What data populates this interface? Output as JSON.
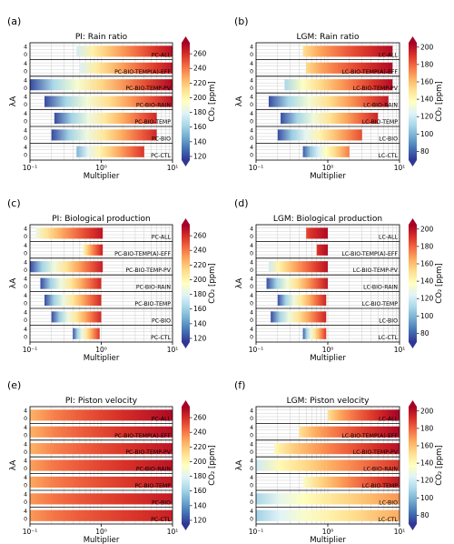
{
  "chart_data": [
    {
      "panel_label": "(a)",
      "title": "PI: Rain ratio",
      "type": "heatmap",
      "xlabel": "Multiplier",
      "ylabel": "λA",
      "x_axis": {
        "scale": "log",
        "range": [
          0.1,
          10
        ],
        "tick_labels": [
          "10⁻¹",
          "10⁰",
          "10¹"
        ]
      },
      "y_tick_labels": [
        "4",
        "0"
      ],
      "colorbar": {
        "label": "CO₂ [ppm]",
        "range": [
          115,
          275
        ],
        "ticks": [
          120,
          140,
          160,
          180,
          200,
          220,
          240,
          260
        ],
        "colormap": "RdYlBu_r"
      },
      "grid": true,
      "rows": [
        {
          "label": "PC-ALL",
          "x_start": 0.45,
          "x_end": 10,
          "c_start": 175,
          "c_end": 270
        },
        {
          "label": "PC-BIO-TEMP(A)-EFF",
          "x_start": 0.5,
          "x_end": 10,
          "c_start": 178,
          "c_end": 268
        },
        {
          "label": "PC-BIO-TEMP-PV",
          "x_start": 0.1,
          "x_end": 10,
          "c_start": 120,
          "c_end": 272
        },
        {
          "label": "PC-BIO-RAIN",
          "x_start": 0.16,
          "x_end": 10,
          "c_start": 120,
          "c_end": 268
        },
        {
          "label": "PC-BIO-TEMP",
          "x_start": 0.22,
          "x_end": 6,
          "c_start": 120,
          "c_end": 262
        },
        {
          "label": "PC-BIO",
          "x_start": 0.2,
          "x_end": 6,
          "c_start": 120,
          "c_end": 262
        },
        {
          "label": "PC-CTL",
          "x_start": 0.45,
          "x_end": 4,
          "c_start": 150,
          "c_end": 258
        }
      ]
    },
    {
      "panel_label": "(b)",
      "title": "LGM: Rain ratio",
      "type": "heatmap",
      "xlabel": "Multiplier",
      "ylabel": "λA",
      "x_axis": {
        "scale": "log",
        "range": [
          0.1,
          10
        ],
        "tick_labels": [
          "10⁻¹",
          "10⁰",
          "10¹"
        ]
      },
      "y_tick_labels": [
        "4",
        "0"
      ],
      "colorbar": {
        "label": "CO₂ [ppm]",
        "range": [
          70,
          205
        ],
        "ticks": [
          80,
          100,
          120,
          140,
          160,
          180,
          200
        ],
        "colormap": "RdYlBu_r"
      },
      "grid": true,
      "rows": [
        {
          "label": "LC-ALL",
          "x_start": 0.45,
          "x_end": 8,
          "c_start": 150,
          "c_end": 202
        },
        {
          "label": "LC-BIO-TEMP(A)-EFF",
          "x_start": 0.5,
          "x_end": 8,
          "c_start": 152,
          "c_end": 202
        },
        {
          "label": "LC-BIO-TEMP-PV",
          "x_start": 0.25,
          "x_end": 8,
          "c_start": 110,
          "c_end": 202
        },
        {
          "label": "LC-BIO-RAIN",
          "x_start": 0.15,
          "x_end": 7,
          "c_start": 75,
          "c_end": 198
        },
        {
          "label": "LC-BIO-TEMP",
          "x_start": 0.22,
          "x_end": 5,
          "c_start": 75,
          "c_end": 195
        },
        {
          "label": "LC-BIO",
          "x_start": 0.2,
          "x_end": 3,
          "c_start": 75,
          "c_end": 185
        },
        {
          "label": "LC-CTL",
          "x_start": 0.45,
          "x_end": 2,
          "c_start": 78,
          "c_end": 175
        }
      ]
    },
    {
      "panel_label": "(c)",
      "title": "PI: Biological production",
      "type": "heatmap",
      "xlabel": "Multiplier",
      "ylabel": "λA",
      "x_axis": {
        "scale": "log",
        "range": [
          0.1,
          10
        ],
        "tick_labels": [
          "10⁻¹",
          "10⁰",
          "10¹"
        ]
      },
      "y_tick_labels": [
        "4",
        "0"
      ],
      "colorbar": {
        "label": "CO₂ [ppm]",
        "range": [
          115,
          275
        ],
        "ticks": [
          120,
          140,
          160,
          180,
          200,
          220,
          240,
          260
        ],
        "colormap": "RdYlBu_r"
      },
      "grid": true,
      "rows": [
        {
          "label": "PC-ALL",
          "x_start": 0.12,
          "x_end": 1.05,
          "c_start": 185,
          "c_end": 268
        },
        {
          "label": "PC-BIO-TEMP(A)-EFF",
          "x_start": 0.55,
          "x_end": 1.05,
          "c_start": 190,
          "c_end": 265
        },
        {
          "label": "PC-BIO-TEMP-PV",
          "x_start": 0.1,
          "x_end": 1.05,
          "c_start": 120,
          "c_end": 265
        },
        {
          "label": "PC-BIO-RAIN",
          "x_start": 0.14,
          "x_end": 1.0,
          "c_start": 120,
          "c_end": 262
        },
        {
          "label": "PC-BIO-TEMP",
          "x_start": 0.16,
          "x_end": 1.0,
          "c_start": 120,
          "c_end": 262
        },
        {
          "label": "PC-BIO",
          "x_start": 0.2,
          "x_end": 1.0,
          "c_start": 120,
          "c_end": 262
        },
        {
          "label": "PC-CTL",
          "x_start": 0.4,
          "x_end": 0.95,
          "c_start": 122,
          "c_end": 258
        }
      ]
    },
    {
      "panel_label": "(d)",
      "title": "LGM: Biological production",
      "type": "heatmap",
      "xlabel": "Multiplier",
      "ylabel": "λA",
      "x_axis": {
        "scale": "log",
        "range": [
          0.1,
          10
        ],
        "tick_labels": [
          "10⁻¹",
          "10⁰",
          "10¹"
        ]
      },
      "y_tick_labels": [
        "4",
        "0"
      ],
      "colorbar": {
        "label": "CO₂ [ppm]",
        "range": [
          70,
          205
        ],
        "ticks": [
          80,
          100,
          120,
          140,
          160,
          180,
          200
        ],
        "colormap": "RdYlBu_r"
      },
      "grid": true,
      "rows": [
        {
          "label": "LC-ALL",
          "x_start": 0.5,
          "x_end": 1.0,
          "c_start": 185,
          "c_end": 202
        },
        {
          "label": "LC-BIO-TEMP(A)-EFF",
          "x_start": 0.7,
          "x_end": 1.0,
          "c_start": 188,
          "c_end": 202
        },
        {
          "label": "LC-BIO-TEMP-PV",
          "x_start": 0.15,
          "x_end": 1.0,
          "c_start": 120,
          "c_end": 200
        },
        {
          "label": "LC-BIO-RAIN",
          "x_start": 0.14,
          "x_end": 1.0,
          "c_start": 75,
          "c_end": 198
        },
        {
          "label": "LC-BIO-TEMP",
          "x_start": 0.2,
          "x_end": 0.95,
          "c_start": 75,
          "c_end": 195
        },
        {
          "label": "LC-BIO",
          "x_start": 0.16,
          "x_end": 0.95,
          "c_start": 75,
          "c_end": 195
        },
        {
          "label": "LC-CTL",
          "x_start": 0.45,
          "x_end": 0.95,
          "c_start": 78,
          "c_end": 190
        }
      ]
    },
    {
      "panel_label": "(e)",
      "title": "PI: Piston velocity",
      "type": "heatmap",
      "xlabel": "Multiplier",
      "ylabel": "λA",
      "x_axis": {
        "scale": "log",
        "range": [
          0.1,
          10
        ],
        "tick_labels": [
          "10⁻¹",
          "10⁰",
          "10¹"
        ]
      },
      "y_tick_labels": [
        "4",
        "0"
      ],
      "colorbar": {
        "label": "CO₂ [ppm]",
        "range": [
          115,
          275
        ],
        "ticks": [
          120,
          140,
          160,
          180,
          200,
          220,
          240,
          260
        ],
        "colormap": "RdYlBu_r"
      },
      "grid": true,
      "rows": [
        {
          "label": "PC-ALL",
          "x_start": 0.1,
          "x_end": 10,
          "c_start": 225,
          "c_end": 272
        },
        {
          "label": "PC-BIO-TEMP(A)-EFF",
          "x_start": 0.1,
          "x_end": 10,
          "c_start": 225,
          "c_end": 270
        },
        {
          "label": "PC-BIO-TEMP-PV",
          "x_start": 0.1,
          "x_end": 10,
          "c_start": 225,
          "c_end": 268
        },
        {
          "label": "PC-BIO-RAIN",
          "x_start": 0.1,
          "x_end": 10,
          "c_start": 230,
          "c_end": 268
        },
        {
          "label": "PC-BIO-TEMP",
          "x_start": 0.1,
          "x_end": 10,
          "c_start": 228,
          "c_end": 266
        },
        {
          "label": "PC-BIO",
          "x_start": 0.1,
          "x_end": 10,
          "c_start": 232,
          "c_end": 266
        },
        {
          "label": "PC-CTL",
          "x_start": 0.1,
          "x_end": 10,
          "c_start": 232,
          "c_end": 264
        }
      ]
    },
    {
      "panel_label": "(f)",
      "title": "LGM: Piston velocity",
      "type": "heatmap",
      "xlabel": "Multiplier",
      "ylabel": "λA",
      "x_axis": {
        "scale": "log",
        "range": [
          0.1,
          10
        ],
        "tick_labels": [
          "10⁻¹",
          "10⁰",
          "10¹"
        ]
      },
      "y_tick_labels": [
        "4",
        "0"
      ],
      "colorbar": {
        "label": "CO₂ [ppm]",
        "range": [
          70,
          205
        ],
        "ticks": [
          80,
          100,
          120,
          140,
          160,
          180,
          200
        ],
        "colormap": "RdYlBu_r"
      },
      "grid": true,
      "rows": [
        {
          "label": "LC-ALL",
          "x_start": 1.0,
          "x_end": 10,
          "c_start": 150,
          "c_end": 205
        },
        {
          "label": "LC-BIO-TEMP(A)-EFF",
          "x_start": 0.4,
          "x_end": 10,
          "c_start": 150,
          "c_end": 203
        },
        {
          "label": "LC-BIO-TEMP-PV",
          "x_start": 0.18,
          "x_end": 10,
          "c_start": 140,
          "c_end": 200
        },
        {
          "label": "LC-BIO-RAIN",
          "x_start": 0.1,
          "x_end": 10,
          "c_start": 120,
          "c_end": 190
        },
        {
          "label": "LC-BIO-TEMP",
          "x_start": 0.45,
          "x_end": 10,
          "c_start": 135,
          "c_end": 198
        },
        {
          "label": "LC-BIO",
          "x_start": 0.1,
          "x_end": 10,
          "c_start": 110,
          "c_end": 170
        },
        {
          "label": "LC-CTL",
          "x_start": 0.1,
          "x_end": 10,
          "c_start": 108,
          "c_end": 165
        }
      ]
    }
  ]
}
